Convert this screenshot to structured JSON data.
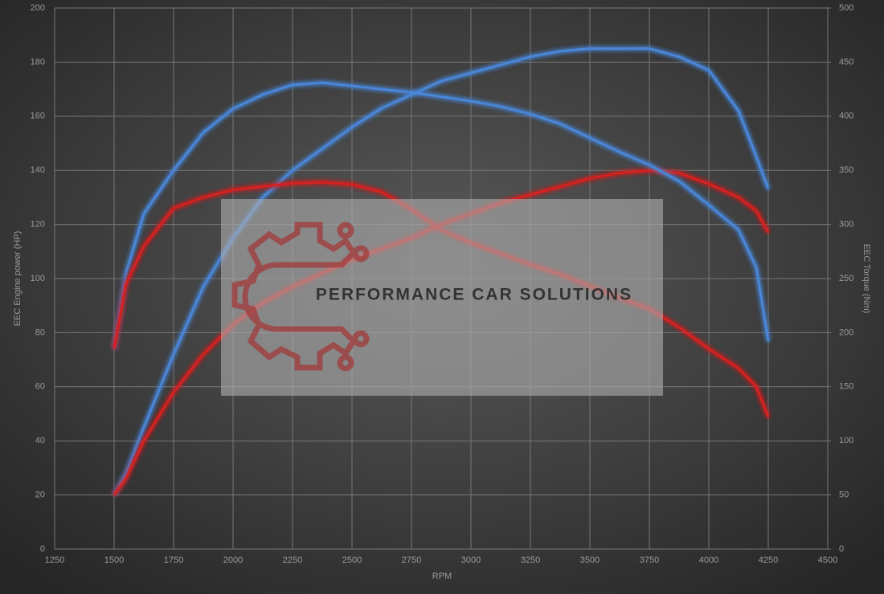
{
  "chart_data": {
    "type": "line",
    "x_label": "RPM",
    "y_label": "EEC Engine power (HP)",
    "y2_label": "EEC Torque (Nm)",
    "watermark": "PERFORMANCE CAR SOLUTIONS",
    "x": [
      1500,
      1550,
      1625,
      1750,
      1875,
      2000,
      2125,
      2250,
      2375,
      2500,
      2625,
      2750,
      2875,
      3000,
      3125,
      3250,
      3375,
      3500,
      3625,
      3750,
      3875,
      4000,
      4125,
      4200,
      4250
    ],
    "series": [
      {
        "color": "#4a86d8",
        "axis": "y",
        "values": [
          20,
          28,
          45,
          72,
          97,
          115,
          130,
          140,
          148,
          156,
          163,
          168,
          173,
          176,
          179,
          182,
          184,
          185,
          185,
          185,
          182,
          177,
          162,
          145,
          133
        ]
      },
      {
        "color": "#d42424",
        "axis": "y",
        "values": [
          20,
          26,
          40,
          58,
          72,
          83,
          91,
          97,
          102,
          107,
          111,
          115,
          120,
          124,
          128,
          131,
          134,
          137,
          139,
          140,
          139,
          135,
          130,
          125,
          117
        ]
      },
      {
        "color": "#4a86d8",
        "axis": "y2",
        "values": [
          185,
          255,
          310,
          350,
          385,
          407,
          420,
          429,
          431,
          428,
          425,
          422,
          418,
          414,
          409,
          402,
          393,
          380,
          367,
          355,
          340,
          318,
          295,
          260,
          192
        ]
      },
      {
        "color": "#d42424",
        "axis": "y2",
        "values": [
          185,
          245,
          280,
          315,
          325,
          332,
          335,
          338,
          339,
          337,
          330,
          314,
          295,
          283,
          273,
          263,
          254,
          243,
          232,
          222,
          205,
          185,
          167,
          150,
          122
        ]
      }
    ],
    "xlim": [
      1250,
      4500
    ],
    "xticks": [
      1250,
      1500,
      1750,
      2000,
      2250,
      2500,
      2750,
      3000,
      3250,
      3500,
      3750,
      4000,
      4250,
      4500
    ],
    "ylim": [
      0,
      200
    ],
    "yticks": [
      0,
      20,
      40,
      60,
      80,
      100,
      120,
      140,
      160,
      180,
      200
    ],
    "y2lim": [
      0,
      500
    ],
    "y2ticks": [
      0,
      50,
      100,
      150,
      200,
      250,
      300,
      350,
      400,
      450,
      500
    ],
    "grid": true
  }
}
